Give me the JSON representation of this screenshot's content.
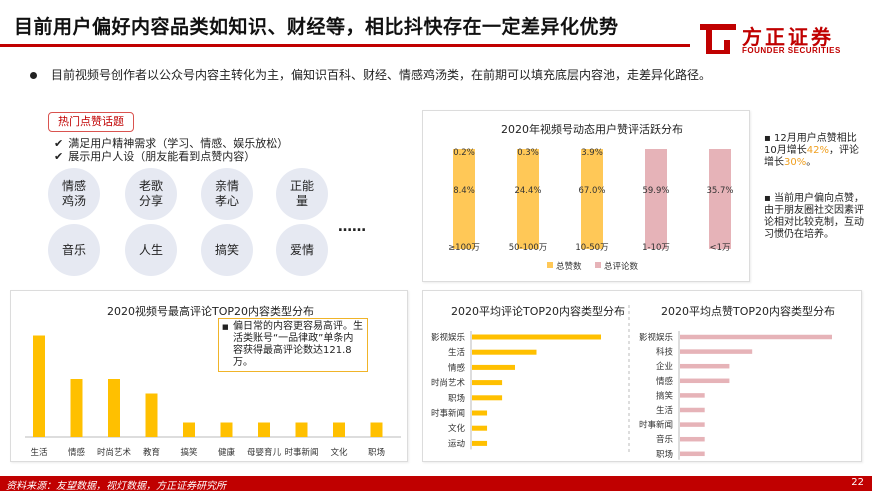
{
  "header": {
    "title": "目前用户偏好内容品类如知识、财经等，相比抖快存在一定差异化优势",
    "logo_cn": "方正证券",
    "logo_en": "FOUNDER SECURITIES",
    "brand_color": "#c00000"
  },
  "intro_bullet": "目前视频号创作者以公众号内容主转化为主，偏知识百科、财经、情感鸡汤类，在前期可以填充底层内容池，走差异化路径。",
  "hot_topics": {
    "tag": "热门点赞话题",
    "checks": [
      "满足用户精神需求（学习、情感、娱乐放松）",
      "展示用户人设（朋友能看到点赞内容）"
    ],
    "circles": [
      "情感\n鸡汤",
      "老歌\n分享",
      "亲情\n孝心",
      "正能\n量",
      "音乐",
      "人生",
      "搞笑",
      "爱情"
    ],
    "ellipsis": "……"
  },
  "side_notes": {
    "note1_a": "12月用户点赞相比10月增长",
    "note1_pct1": "42%",
    "note1_b": "，评论增长",
    "note1_pct2": "30%",
    "note1_c": "。",
    "note2": "当前用户偏向点赞，由于朋友圈社交因素评论相对比较克制，互动习惯仍在培养。"
  },
  "mid_note": "偏日常的内容更容易高评。生活类账号“一品律政”单条内容获得最高评论数达121.8万。",
  "chart_data": [
    {
      "type": "bar",
      "title": "2020年视频号动态用户赞评活跃分布",
      "categories": [
        "≥100万",
        "50-100万",
        "10-50万",
        "1-10万",
        "<1万"
      ],
      "series": [
        {
          "name": "总赞数",
          "values": [
            8.4,
            24.4,
            67.0,
            59.9,
            35.7
          ],
          "labels": [
            "8.4%",
            "24.4%",
            "67.0%",
            "59.9%",
            "35.7%"
          ],
          "color": "#ffc857"
        },
        {
          "name": "总评论数",
          "values": [
            0.2,
            0.3,
            3.9,
            null,
            null
          ],
          "labels": [
            "0.2%",
            "0.3%",
            "3.9%",
            "",
            ""
          ],
          "color": "#e6b3b8"
        }
      ],
      "bar_colors": [
        "#ffc857",
        "#ffc857",
        "#ffc857",
        "#e6b3b8",
        "#e6b3b8"
      ],
      "legend": "bottom"
    },
    {
      "type": "bar",
      "title": "2020视频号最高评论TOP20内容类型分布",
      "categories": [
        "生活",
        "情感",
        "时尚艺术",
        "教育",
        "搞笑",
        "健康",
        "母婴育儿",
        "时事新闻",
        "文化",
        "职场"
      ],
      "values": [
        7,
        4,
        4,
        3,
        1,
        1,
        1,
        1,
        1,
        1
      ],
      "color": "#ffc000"
    },
    {
      "type": "bar",
      "orientation": "horizontal",
      "title": "2020平均评论TOP20内容类型分布",
      "categories": [
        "影视娱乐",
        "生活",
        "情感",
        "时尚艺术",
        "职场",
        "时事新闻",
        "文化",
        "运动"
      ],
      "values": [
        6,
        3,
        2,
        1.4,
        1.4,
        0.7,
        0.7,
        0.7
      ],
      "color": "#ffc000"
    },
    {
      "type": "bar",
      "orientation": "horizontal",
      "title": "2020平均点赞TOP20内容类型分布",
      "categories": [
        "影视娱乐",
        "科技",
        "企业",
        "情感",
        "搞笑",
        "生活",
        "时事新闻",
        "音乐",
        "职场"
      ],
      "values": [
        8,
        3.8,
        2.6,
        2.6,
        1.3,
        1.3,
        1.3,
        1.3,
        1.3
      ],
      "color": "#e6b3b8"
    }
  ],
  "footer": {
    "source": "资料来源：友望数据，视灯数据，方正证券研究所",
    "page": "22"
  }
}
